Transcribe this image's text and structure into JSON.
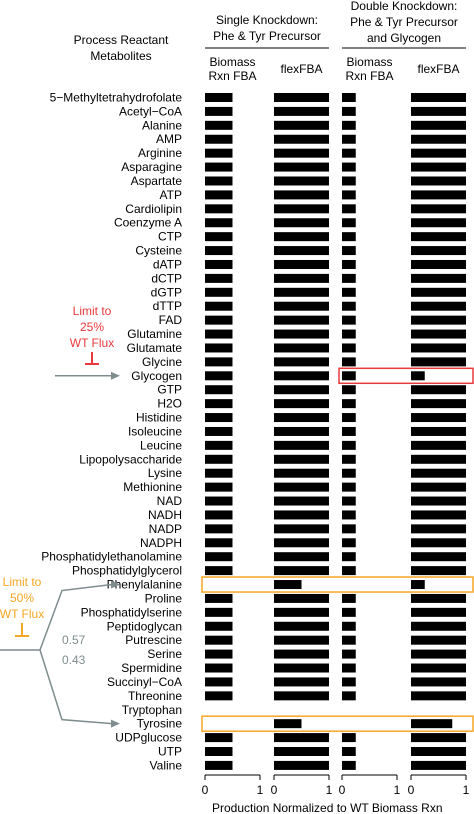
{
  "chart_data": {
    "type": "bar",
    "orientation": "horizontal",
    "row_header": [
      "Process Reactant",
      "Metabolites"
    ],
    "groups": [
      {
        "title": [
          "Single Knockdown:",
          "Phe & Tyr Precursor"
        ]
      },
      {
        "title": [
          "Double Knockdown:",
          "Phe & Tyr Precursor",
          "and Glycogen"
        ]
      }
    ],
    "panels": [
      {
        "name": [
          "Biomass",
          "Rxn FBA"
        ],
        "group": 0
      },
      {
        "name": [
          "flexFBA"
        ],
        "group": 0
      },
      {
        "name": [
          "Biomass",
          "Rxn FBA"
        ],
        "group": 1
      },
      {
        "name": [
          "flexFBA"
        ],
        "group": 1
      }
    ],
    "xlim": [
      0,
      1
    ],
    "xticks": [
      "0",
      "1"
    ],
    "xlabel": "Production Normalized to WT Biomass Rxn",
    "categories": [
      "5−Methyltetrahydrofolate",
      "Acetyl−CoA",
      "Alanine",
      "AMP",
      "Arginine",
      "Asparagine",
      "Aspartate",
      "ATP",
      "Cardiolipin",
      "Coenzyme A",
      "CTP",
      "Cysteine",
      "dATP",
      "dCTP",
      "dGTP",
      "dTTP",
      "FAD",
      "Glutamine",
      "Glutamate",
      "Glycine",
      "Glycogen",
      "GTP",
      "H2O",
      "Histidine",
      "Isoleucine",
      "Leucine",
      "Lipopolysaccharide",
      "Lysine",
      "Methionine",
      "NAD",
      "NADH",
      "NADP",
      "NADPH",
      "Phosphatidylethanolamine",
      "Phosphatidylglycerol",
      "Phenylalanine",
      "Proline",
      "Phosphatidylserine",
      "Peptidoglycan",
      "Putrescine",
      "Serine",
      "Spermidine",
      "Succinyl−CoA",
      "Threonine",
      "Tryptophan",
      "Tyrosine",
      "UDPglucose",
      "UTP",
      "Valine"
    ],
    "series": [
      {
        "values": [
          0.5,
          0.5,
          0.5,
          0.5,
          0.5,
          0.5,
          0.5,
          0.5,
          0.5,
          0.5,
          0.5,
          0.5,
          0.5,
          0.5,
          0.5,
          0.5,
          0.5,
          0.5,
          0.5,
          0.5,
          0.5,
          0.5,
          0.5,
          0.5,
          0.5,
          0.5,
          0.5,
          0.5,
          0.5,
          0.5,
          0.5,
          0.5,
          0.5,
          0.5,
          0.5,
          0.0,
          0.5,
          0.5,
          0.5,
          0.5,
          0.5,
          0.5,
          0.5,
          0.5,
          0.0,
          0.0,
          0.5,
          0.5,
          0.5
        ]
      },
      {
        "values": [
          1,
          1,
          1,
          1,
          1,
          1,
          1,
          1,
          1,
          1,
          1,
          1,
          1,
          1,
          1,
          1,
          1,
          1,
          1,
          1,
          1,
          1,
          1,
          1,
          1,
          1,
          1,
          1,
          1,
          1,
          1,
          1,
          1,
          1,
          1,
          0.5,
          1,
          1,
          1,
          1,
          1,
          1,
          1,
          1,
          0.0,
          0.5,
          1,
          1,
          1
        ]
      },
      {
        "values": [
          0.25,
          0.25,
          0.25,
          0.25,
          0.25,
          0.25,
          0.25,
          0.25,
          0.25,
          0.25,
          0.25,
          0.25,
          0.25,
          0.25,
          0.25,
          0.25,
          0.25,
          0.25,
          0.25,
          0.25,
          0.25,
          0.25,
          0.25,
          0.25,
          0.25,
          0.25,
          0.25,
          0.25,
          0.25,
          0.25,
          0.25,
          0.25,
          0.25,
          0.25,
          0.25,
          0.0,
          0.25,
          0.25,
          0.25,
          0.25,
          0.25,
          0.25,
          0.25,
          0.25,
          0.0,
          0.0,
          0.25,
          0.25,
          0.25
        ]
      },
      {
        "values": [
          1,
          1,
          1,
          1,
          1,
          1,
          1,
          1,
          1,
          1,
          1,
          1,
          1,
          1,
          1,
          1,
          1,
          1,
          1,
          1,
          0.25,
          1,
          1,
          1,
          1,
          1,
          1,
          1,
          1,
          1,
          1,
          1,
          1,
          1,
          1,
          0.25,
          1,
          1,
          1,
          1,
          1,
          1,
          1,
          1,
          0.0,
          0.75,
          1,
          1,
          1
        ]
      }
    ],
    "highlights": [
      {
        "category": "Glycogen",
        "panels": [
          2,
          3
        ],
        "color": "#e8393b"
      },
      {
        "category": "Phenylalanine",
        "panels": [
          0,
          1,
          2,
          3
        ],
        "color": "#f5a623"
      },
      {
        "category": "Tyrosine",
        "panels": [
          0,
          1,
          2,
          3
        ],
        "color": "#f5a623"
      }
    ],
    "annotations": [
      {
        "lines": [
          "Limit to",
          "25%",
          "WT Flux"
        ],
        "color": "#e8393b",
        "target": "Glycogen"
      },
      {
        "lines": [
          "Limit to",
          "50%",
          "WT Flux"
        ],
        "color": "#f5a623",
        "targets": [
          "Phenylalanine",
          "Tyrosine"
        ]
      },
      {
        "text": "0.57",
        "color": "#7f8c8d"
      },
      {
        "text": "0.43",
        "color": "#7f8c8d"
      }
    ],
    "colors": {
      "bar": "#000000",
      "arrow": "#7f8c8d",
      "red": "#e8393b",
      "orange": "#f5a623",
      "gray_text": "#7f8c8d"
    }
  }
}
